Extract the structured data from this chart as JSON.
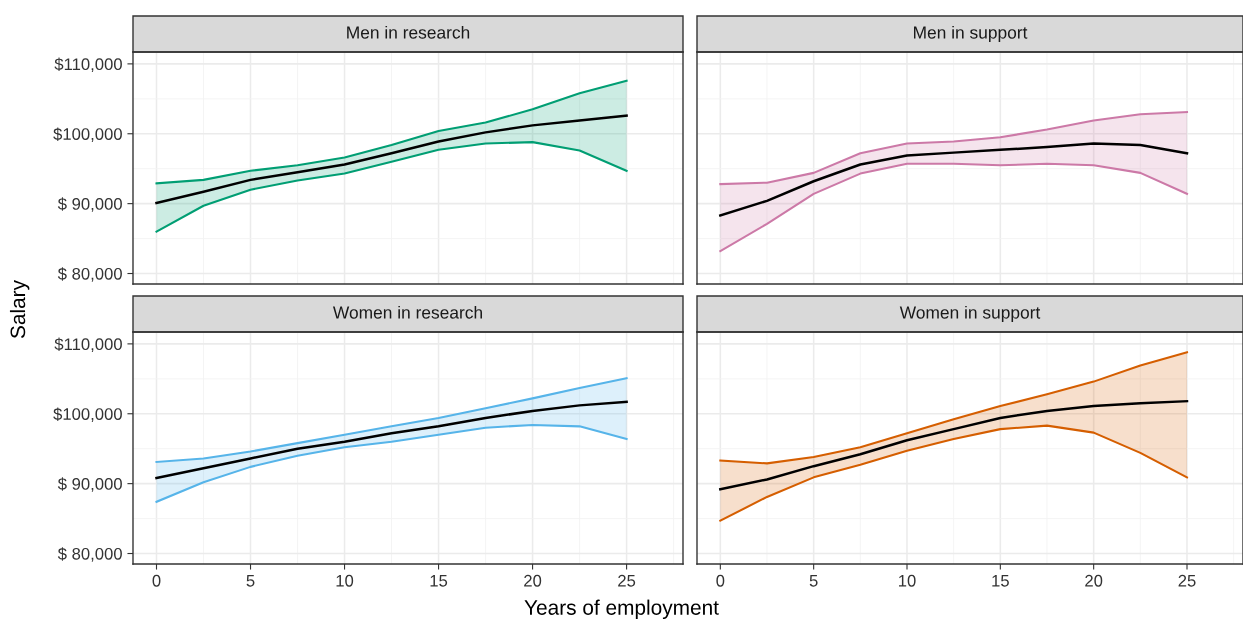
{
  "chart_data": [
    {
      "type": "line",
      "title": "Men in research",
      "ylabel": "Salary",
      "x": [
        0,
        2.5,
        5,
        7.5,
        10,
        12.5,
        15,
        17.5,
        20,
        22.5,
        25
      ],
      "xlim": [
        -1.25,
        28
      ],
      "xticks": [
        0,
        5,
        10,
        15,
        20,
        25
      ],
      "ylim": [
        78500,
        111700
      ],
      "yticks": [
        {
          "value": 80000,
          "label": "$ 80,000"
        },
        {
          "value": 90000,
          "label": "$ 90,000"
        },
        {
          "value": 100000,
          "label": "$100,000"
        },
        {
          "value": 110000,
          "label": "$110,000"
        }
      ],
      "grid": true,
      "tick_labels": "y",
      "series": [
        {
          "color": "#000000",
          "values": [
            90100,
            91700,
            93400,
            94500,
            95600,
            97200,
            98900,
            100200,
            101200,
            101900,
            102600
          ],
          "lower": [
            86000,
            89700,
            92000,
            93300,
            94300,
            96000,
            97700,
            98600,
            98800,
            97600,
            94700
          ],
          "upper": [
            92900,
            93400,
            94700,
            95500,
            96600,
            98400,
            100400,
            101600,
            103500,
            105800,
            107600
          ]
        },
        {
          "color": "#009e73",
          "values": [
            92900,
            93400,
            94700,
            95500,
            96600,
            98400,
            100400,
            101600,
            103500,
            105800,
            107600
          ]
        },
        {
          "color": "#009e73",
          "values": [
            86000,
            89700,
            92000,
            93300,
            94300,
            96000,
            97700,
            98600,
            98800,
            97600,
            94700
          ]
        }
      ]
    },
    {
      "type": "line",
      "title": "Men in support",
      "x": [
        0,
        2.5,
        5,
        7.5,
        10,
        12.5,
        15,
        17.5,
        20,
        22.5,
        25
      ],
      "xlim": [
        -1.25,
        28
      ],
      "xticks": [
        0,
        5,
        10,
        15,
        20,
        25
      ],
      "ylim": [
        78500,
        111700
      ],
      "yticks": [
        80000,
        90000,
        100000,
        110000
      ],
      "grid": true,
      "tick_labels": false,
      "series": [
        {
          "color": "#000000",
          "values": [
            88300,
            90400,
            93200,
            95600,
            96900,
            97300,
            97700,
            98100,
            98600,
            98400,
            97200
          ],
          "lower": [
            83200,
            87100,
            91400,
            94300,
            95700,
            95700,
            95500,
            95700,
            95500,
            94400,
            91400
          ],
          "upper": [
            92800,
            93000,
            94400,
            97200,
            98600,
            98900,
            99500,
            100600,
            101900,
            102800,
            103100
          ]
        },
        {
          "color": "#cc79a7",
          "values": [
            92800,
            93000,
            94400,
            97200,
            98600,
            98900,
            99500,
            100600,
            101900,
            102800,
            103100
          ]
        },
        {
          "color": "#cc79a7",
          "values": [
            83200,
            87100,
            91400,
            94300,
            95700,
            95700,
            95500,
            95700,
            95500,
            94400,
            91400
          ]
        }
      ]
    },
    {
      "type": "line",
      "title": "Women in research",
      "xlabel": "Years of employment",
      "x": [
        0,
        2.5,
        5,
        7.5,
        10,
        12.5,
        15,
        17.5,
        20,
        22.5,
        25
      ],
      "xlim": [
        -1.25,
        28
      ],
      "xticks": [
        0,
        5,
        10,
        15,
        20,
        25
      ],
      "ylim": [
        78500,
        111700
      ],
      "yticks": [
        {
          "value": 80000,
          "label": "$ 80,000"
        },
        {
          "value": 90000,
          "label": "$ 90,000"
        },
        {
          "value": 100000,
          "label": "$100,000"
        },
        {
          "value": 110000,
          "label": "$110,000"
        }
      ],
      "grid": true,
      "series": [
        {
          "color": "#000000",
          "values": [
            90800,
            92200,
            93600,
            95000,
            96000,
            97200,
            98200,
            99400,
            100400,
            101200,
            101700
          ],
          "lower": [
            87400,
            90200,
            92400,
            94000,
            95200,
            96000,
            97000,
            98000,
            98400,
            98200,
            96400
          ],
          "upper": [
            93100,
            93600,
            94600,
            95800,
            97000,
            98200,
            99400,
            100800,
            102200,
            103700,
            105100
          ]
        },
        {
          "color": "#56b4e9",
          "values": [
            93100,
            93600,
            94600,
            95800,
            97000,
            98200,
            99400,
            100800,
            102200,
            103700,
            105100
          ]
        },
        {
          "color": "#56b4e9",
          "values": [
            87400,
            90200,
            92400,
            94000,
            95200,
            96000,
            97000,
            98000,
            98400,
            98200,
            96400
          ]
        }
      ]
    },
    {
      "type": "line",
      "title": "Women in support",
      "x": [
        0,
        2.5,
        5,
        7.5,
        10,
        12.5,
        15,
        17.5,
        20,
        22.5,
        25
      ],
      "xlim": [
        -1.25,
        28
      ],
      "xticks": [
        0,
        5,
        10,
        15,
        20,
        25
      ],
      "ylim": [
        78500,
        111700
      ],
      "yticks": [
        80000,
        90000,
        100000,
        110000
      ],
      "grid": true,
      "tick_labels": "x",
      "series": [
        {
          "color": "#000000",
          "values": [
            89200,
            90600,
            92500,
            94200,
            96200,
            97800,
            99400,
            100400,
            101100,
            101500,
            101800
          ],
          "lower": [
            84700,
            88100,
            90900,
            92700,
            94700,
            96400,
            97800,
            98300,
            97300,
            94400,
            90900
          ],
          "upper": [
            93300,
            92900,
            93800,
            95200,
            97200,
            99200,
            101100,
            102800,
            104600,
            106900,
            108800
          ]
        },
        {
          "color": "#d55e00",
          "values": [
            93300,
            92900,
            93800,
            95200,
            97200,
            99200,
            101100,
            102800,
            104600,
            106900,
            108800
          ]
        },
        {
          "color": "#d55e00",
          "values": [
            84700,
            88100,
            90900,
            92700,
            94700,
            96400,
            97800,
            98300,
            97300,
            94400,
            90900
          ]
        }
      ]
    }
  ]
}
